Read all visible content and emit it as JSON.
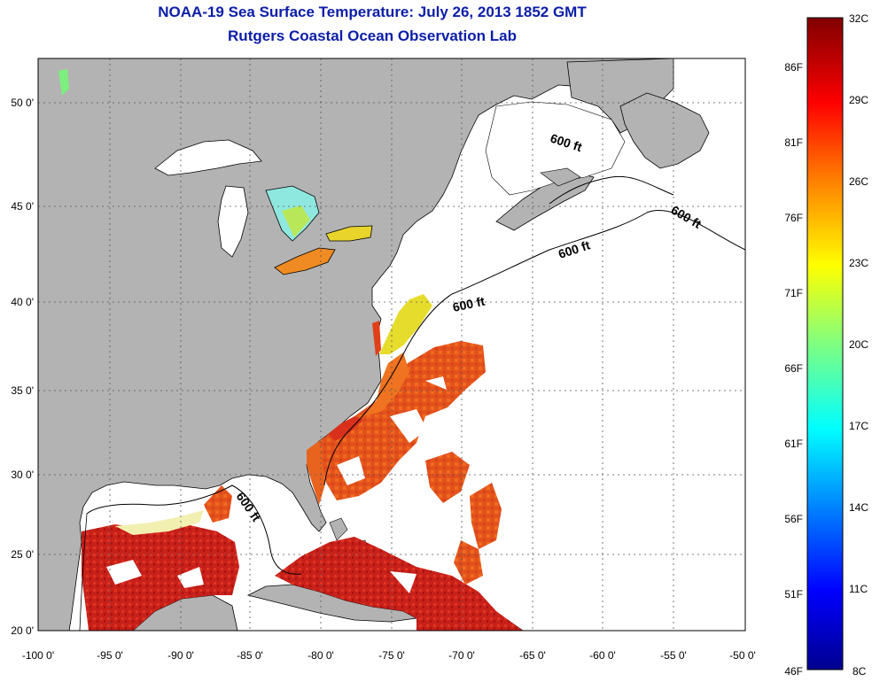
{
  "header": {
    "title": "NOAA-19 Sea Surface Temperature:  July 26, 2013 1852 GMT",
    "subtitle": "Rutgers Coastal Ocean Observation Lab"
  },
  "map": {
    "lon_range": [
      -100,
      -50
    ],
    "lat_range": [
      20,
      52
    ],
    "lon_ticks": [
      "-100 0'",
      "-95 0'",
      "-90 0'",
      "-85 0'",
      "-80 0'",
      "-75 0'",
      "-70 0'",
      "-65 0'",
      "-60 0'",
      "-55 0'",
      "-50 0'"
    ],
    "lat_ticks": [
      "20 0'",
      "25 0'",
      "30 0'",
      "35 0'",
      "40 0'",
      "45 0'",
      "50 0'"
    ],
    "depth_labels": [
      "600 ft",
      "600 ft",
      "600 ft",
      "600 ft",
      "600 ft"
    ],
    "colors": {
      "land": "#b3b3b3",
      "ocean_nodata": "#ffffff",
      "grid": "#555555"
    }
  },
  "colorbar": {
    "celsius": [
      "32C",
      "29C",
      "26C",
      "23C",
      "20C",
      "17C",
      "14C",
      "11C",
      "8C"
    ],
    "fahrenheit": [
      "86F",
      "81F",
      "76F",
      "71F",
      "66F",
      "61F",
      "56F",
      "51F",
      "46F"
    ],
    "range_c": [
      8,
      32
    ],
    "colormap": [
      "#00008f",
      "#0000ff",
      "#0080ff",
      "#00ffff",
      "#80ff80",
      "#ffff00",
      "#ff8000",
      "#ff0000",
      "#800000"
    ]
  }
}
